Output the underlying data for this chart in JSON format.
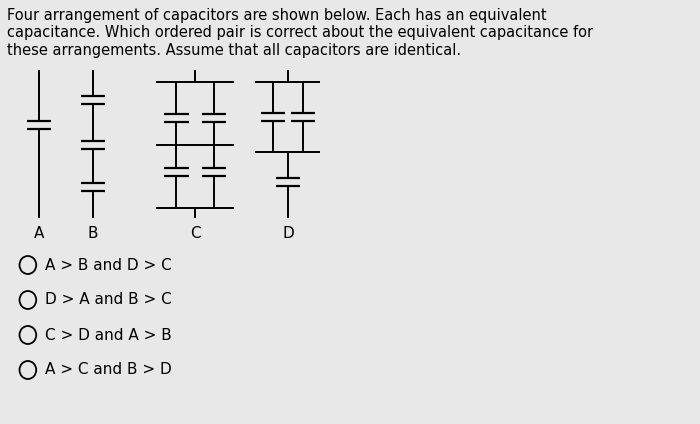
{
  "background_color": "#e8e8e8",
  "title_text": "Four arrangement of capacitors are shown below. Each has an equivalent\ncapacitance. Which ordered pair is correct about the equivalent capacitance for\nthese arrangements. Assume that all capacitors are identical.",
  "title_fontsize": 10.5,
  "choices": [
    "A > B and D > C",
    "D > A and B > C",
    "C > D and A > B",
    "A > C and B > D"
  ],
  "choice_fontsize": 11,
  "text_color": "#000000",
  "lw": 1.4,
  "cap_lw": 1.6
}
